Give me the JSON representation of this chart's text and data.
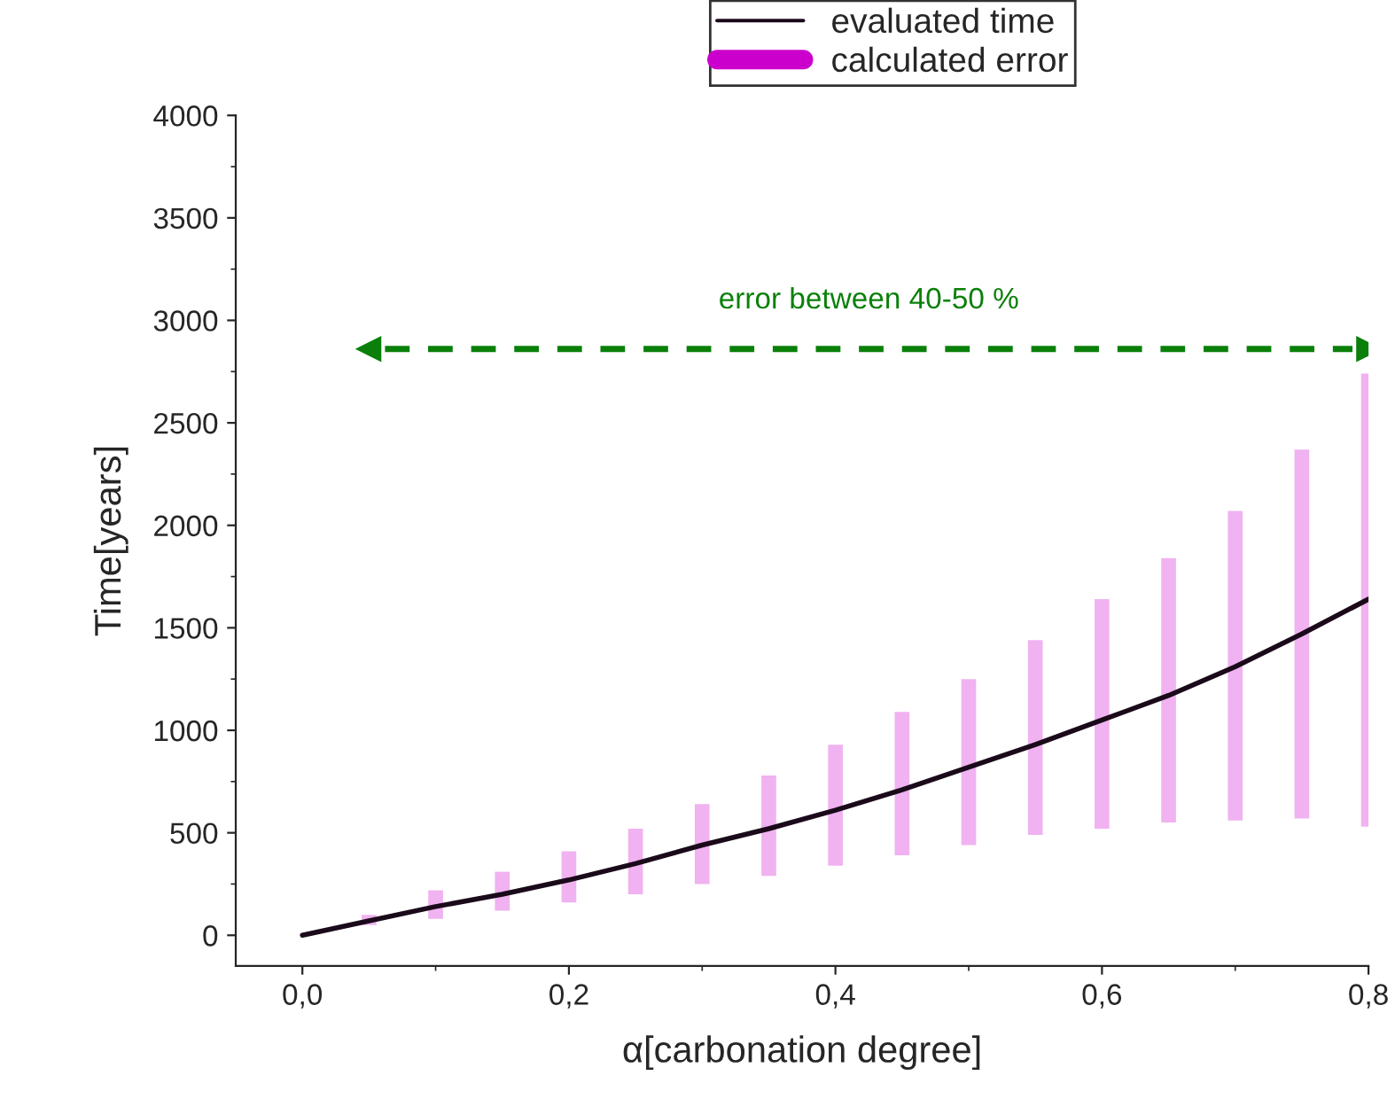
{
  "chart_data": {
    "type": "line",
    "xlabel": "α[carbonation degree]",
    "ylabel": "Time[years]",
    "x": [
      0,
      0.05,
      0.1,
      0.15,
      0.2,
      0.25,
      0.3,
      0.35,
      0.4,
      0.45,
      0.5,
      0.55,
      0.6,
      0.65,
      0.7,
      0.75,
      0.8
    ],
    "series": [
      {
        "name": "evaluated time",
        "color": "#1a0a1a",
        "values": [
          0,
          70,
          140,
          200,
          270,
          350,
          440,
          520,
          610,
          710,
          820,
          930,
          1050,
          1170,
          1310,
          1470,
          1640
        ],
        "errors": [
          null,
          [
            50,
            100
          ],
          [
            80,
            220
          ],
          [
            120,
            310
          ],
          [
            160,
            410
          ],
          [
            200,
            520
          ],
          [
            250,
            640
          ],
          [
            290,
            780
          ],
          [
            340,
            930
          ],
          [
            390,
            1090
          ],
          [
            440,
            1250
          ],
          [
            490,
            1440
          ],
          [
            520,
            1640
          ],
          [
            550,
            1840
          ],
          [
            560,
            2070
          ],
          [
            570,
            2370
          ],
          [
            530,
            2740
          ]
        ]
      }
    ],
    "xlim": [
      -0.05,
      0.8
    ],
    "xticks": [
      {
        "value": 0,
        "label": "0,0"
      },
      {
        "value": 0.2,
        "label": "0,2"
      },
      {
        "value": 0.4,
        "label": "0,4"
      },
      {
        "value": 0.6,
        "label": "0,6"
      },
      {
        "value": 0.8,
        "label": "0,8"
      }
    ],
    "ylim": [
      -150,
      4000
    ],
    "yticks": [
      0,
      500,
      1000,
      1500,
      2000,
      2500,
      3000,
      3500,
      4000
    ],
    "annotations": [
      "calculated error"
    ],
    "ref_lines": [
      {
        "axis": "y",
        "value": 2860,
        "label": "error between 40-50 %",
        "color": "#0a800a",
        "line_style": "dashed"
      }
    ],
    "grid": false,
    "legend": "top"
  }
}
